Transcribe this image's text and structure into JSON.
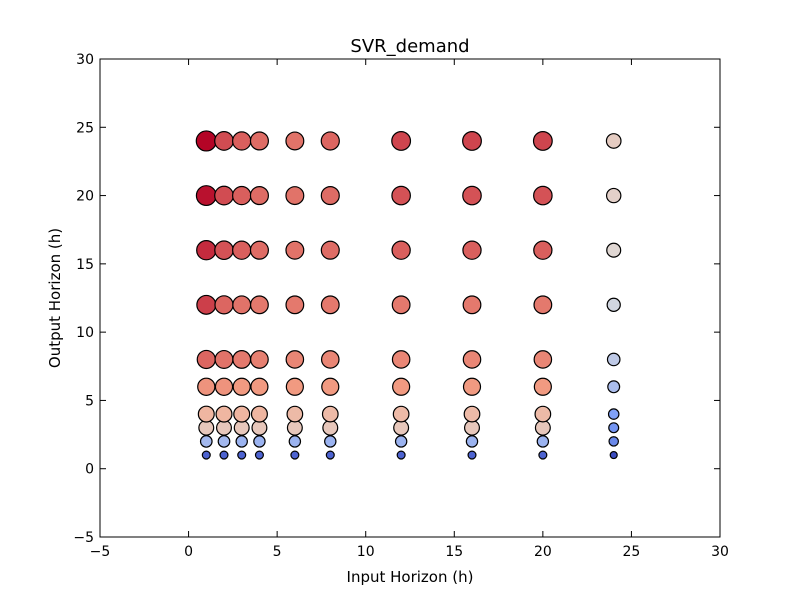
{
  "chart_data": {
    "type": "scatter",
    "title": "SVR_demand",
    "xlabel": "Input Horizon (h)",
    "ylabel": "Output Horizon (h)",
    "xlim": [
      -5,
      30
    ],
    "ylim": [
      -5,
      30
    ],
    "xticks": [
      -5,
      0,
      5,
      10,
      15,
      20,
      25,
      30
    ],
    "yticks": [
      -5,
      0,
      5,
      10,
      15,
      20,
      25,
      30
    ],
    "xtick_labels": [
      "−5",
      "0",
      "5",
      "10",
      "15",
      "20",
      "25",
      "30"
    ],
    "ytick_labels": [
      "−5",
      "0",
      "5",
      "10",
      "15",
      "20",
      "25",
      "30"
    ],
    "grid": false,
    "colormap": "coolwarm",
    "marker_edge_color": "#000000",
    "x_values": [
      1,
      2,
      3,
      4,
      6,
      8,
      12,
      16,
      20,
      24
    ],
    "y_values": [
      1,
      2,
      3,
      4,
      6,
      8,
      12,
      16,
      20,
      24
    ],
    "points": [
      {
        "x": 1,
        "y": 1,
        "v": 0.07
      },
      {
        "x": 2,
        "y": 1,
        "v": 0.07
      },
      {
        "x": 3,
        "y": 1,
        "v": 0.07
      },
      {
        "x": 4,
        "y": 1,
        "v": 0.07
      },
      {
        "x": 6,
        "y": 1,
        "v": 0.07
      },
      {
        "x": 8,
        "y": 1,
        "v": 0.07
      },
      {
        "x": 12,
        "y": 1,
        "v": 0.07
      },
      {
        "x": 16,
        "y": 1,
        "v": 0.07
      },
      {
        "x": 20,
        "y": 1,
        "v": 0.07
      },
      {
        "x": 24,
        "y": 1,
        "v": 0.0
      },
      {
        "x": 1,
        "y": 2,
        "v": 0.35
      },
      {
        "x": 2,
        "y": 2,
        "v": 0.35
      },
      {
        "x": 3,
        "y": 2,
        "v": 0.33
      },
      {
        "x": 4,
        "y": 2,
        "v": 0.33
      },
      {
        "x": 6,
        "y": 2,
        "v": 0.33
      },
      {
        "x": 8,
        "y": 2,
        "v": 0.33
      },
      {
        "x": 12,
        "y": 2,
        "v": 0.33
      },
      {
        "x": 16,
        "y": 2,
        "v": 0.33
      },
      {
        "x": 20,
        "y": 2,
        "v": 0.33
      },
      {
        "x": 24,
        "y": 2,
        "v": 0.18
      },
      {
        "x": 1,
        "y": 3,
        "v": 0.6
      },
      {
        "x": 2,
        "y": 3,
        "v": 0.6
      },
      {
        "x": 3,
        "y": 3,
        "v": 0.6
      },
      {
        "x": 4,
        "y": 3,
        "v": 0.6
      },
      {
        "x": 6,
        "y": 3,
        "v": 0.6
      },
      {
        "x": 8,
        "y": 3,
        "v": 0.6
      },
      {
        "x": 12,
        "y": 3,
        "v": 0.6
      },
      {
        "x": 16,
        "y": 3,
        "v": 0.6
      },
      {
        "x": 20,
        "y": 3,
        "v": 0.6
      },
      {
        "x": 24,
        "y": 3,
        "v": 0.22
      },
      {
        "x": 1,
        "y": 4,
        "v": 0.68
      },
      {
        "x": 2,
        "y": 4,
        "v": 0.68
      },
      {
        "x": 3,
        "y": 4,
        "v": 0.68
      },
      {
        "x": 4,
        "y": 4,
        "v": 0.68
      },
      {
        "x": 6,
        "y": 4,
        "v": 0.66
      },
      {
        "x": 8,
        "y": 4,
        "v": 0.66
      },
      {
        "x": 12,
        "y": 4,
        "v": 0.66
      },
      {
        "x": 16,
        "y": 4,
        "v": 0.66
      },
      {
        "x": 20,
        "y": 4,
        "v": 0.66
      },
      {
        "x": 24,
        "y": 4,
        "v": 0.26
      },
      {
        "x": 1,
        "y": 6,
        "v": 0.78
      },
      {
        "x": 2,
        "y": 6,
        "v": 0.78
      },
      {
        "x": 3,
        "y": 6,
        "v": 0.77
      },
      {
        "x": 4,
        "y": 6,
        "v": 0.77
      },
      {
        "x": 6,
        "y": 6,
        "v": 0.77
      },
      {
        "x": 8,
        "y": 6,
        "v": 0.77
      },
      {
        "x": 12,
        "y": 6,
        "v": 0.77
      },
      {
        "x": 16,
        "y": 6,
        "v": 0.77
      },
      {
        "x": 20,
        "y": 6,
        "v": 0.77
      },
      {
        "x": 24,
        "y": 6,
        "v": 0.37
      },
      {
        "x": 1,
        "y": 8,
        "v": 0.85
      },
      {
        "x": 2,
        "y": 8,
        "v": 0.83
      },
      {
        "x": 3,
        "y": 8,
        "v": 0.82
      },
      {
        "x": 4,
        "y": 8,
        "v": 0.81
      },
      {
        "x": 6,
        "y": 8,
        "v": 0.8
      },
      {
        "x": 8,
        "y": 8,
        "v": 0.8
      },
      {
        "x": 12,
        "y": 8,
        "v": 0.8
      },
      {
        "x": 16,
        "y": 8,
        "v": 0.8
      },
      {
        "x": 20,
        "y": 8,
        "v": 0.8
      },
      {
        "x": 24,
        "y": 8,
        "v": 0.42
      },
      {
        "x": 1,
        "y": 12,
        "v": 0.91
      },
      {
        "x": 2,
        "y": 12,
        "v": 0.85
      },
      {
        "x": 3,
        "y": 12,
        "v": 0.83
      },
      {
        "x": 4,
        "y": 12,
        "v": 0.82
      },
      {
        "x": 6,
        "y": 12,
        "v": 0.82
      },
      {
        "x": 8,
        "y": 12,
        "v": 0.82
      },
      {
        "x": 12,
        "y": 12,
        "v": 0.82
      },
      {
        "x": 16,
        "y": 12,
        "v": 0.82
      },
      {
        "x": 20,
        "y": 12,
        "v": 0.82
      },
      {
        "x": 24,
        "y": 12,
        "v": 0.47
      },
      {
        "x": 1,
        "y": 16,
        "v": 0.94
      },
      {
        "x": 2,
        "y": 16,
        "v": 0.88
      },
      {
        "x": 3,
        "y": 16,
        "v": 0.86
      },
      {
        "x": 4,
        "y": 16,
        "v": 0.84
      },
      {
        "x": 6,
        "y": 16,
        "v": 0.83
      },
      {
        "x": 8,
        "y": 16,
        "v": 0.84
      },
      {
        "x": 12,
        "y": 16,
        "v": 0.86
      },
      {
        "x": 16,
        "y": 16,
        "v": 0.86
      },
      {
        "x": 20,
        "y": 16,
        "v": 0.86
      },
      {
        "x": 24,
        "y": 16,
        "v": 0.53
      },
      {
        "x": 1,
        "y": 20,
        "v": 0.98
      },
      {
        "x": 2,
        "y": 20,
        "v": 0.89
      },
      {
        "x": 3,
        "y": 20,
        "v": 0.86
      },
      {
        "x": 4,
        "y": 20,
        "v": 0.84
      },
      {
        "x": 6,
        "y": 20,
        "v": 0.83
      },
      {
        "x": 8,
        "y": 20,
        "v": 0.84
      },
      {
        "x": 12,
        "y": 20,
        "v": 0.88
      },
      {
        "x": 16,
        "y": 20,
        "v": 0.88
      },
      {
        "x": 20,
        "y": 20,
        "v": 0.88
      },
      {
        "x": 24,
        "y": 20,
        "v": 0.56
      },
      {
        "x": 1,
        "y": 24,
        "v": 1.0
      },
      {
        "x": 2,
        "y": 24,
        "v": 0.89
      },
      {
        "x": 3,
        "y": 24,
        "v": 0.86
      },
      {
        "x": 4,
        "y": 24,
        "v": 0.84
      },
      {
        "x": 6,
        "y": 24,
        "v": 0.83
      },
      {
        "x": 8,
        "y": 24,
        "v": 0.85
      },
      {
        "x": 12,
        "y": 24,
        "v": 0.9
      },
      {
        "x": 16,
        "y": 24,
        "v": 0.9
      },
      {
        "x": 20,
        "y": 24,
        "v": 0.9
      },
      {
        "x": 24,
        "y": 24,
        "v": 0.58
      }
    ]
  }
}
